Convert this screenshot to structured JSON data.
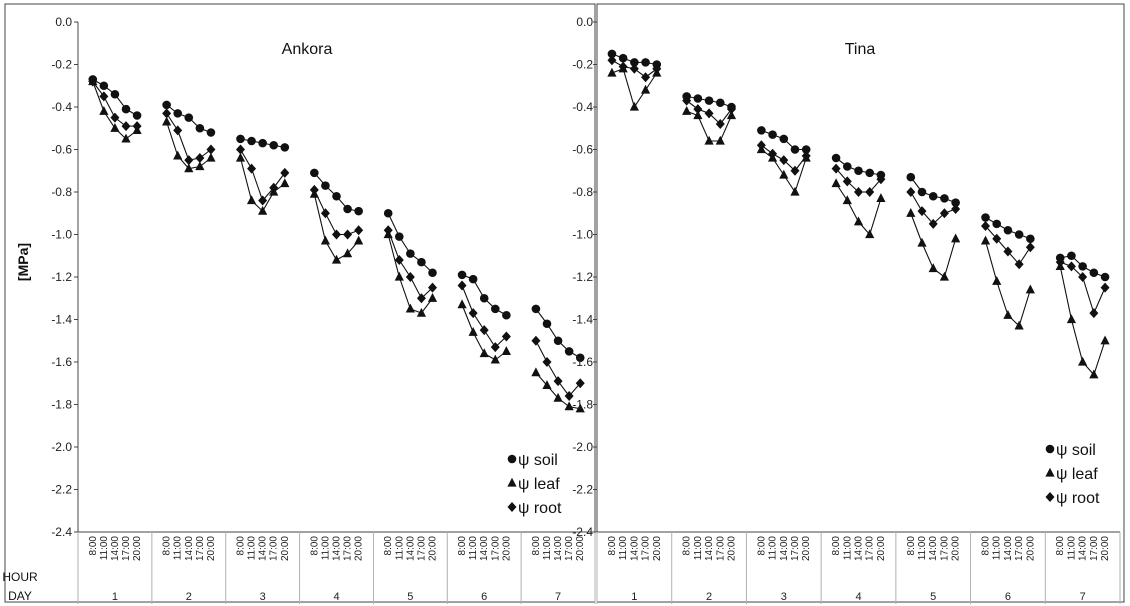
{
  "y_axis_label": "[MPa]",
  "row_labels": {
    "hour": "HOUR",
    "day": "DAY"
  },
  "hours": [
    "8:00",
    "11:00",
    "14:00",
    "17:00",
    "20:00"
  ],
  "days": [
    "1",
    "2",
    "3",
    "4",
    "5",
    "6",
    "7"
  ],
  "y_ticks": [
    "0.0",
    "-0.2",
    "-0.4",
    "-0.6",
    "-0.8",
    "-1.0",
    "-1.2",
    "-1.4",
    "-1.6",
    "-1.8",
    "-2.0",
    "-2.2",
    "-2.4"
  ],
  "legend": [
    "ψ soil",
    "ψ leaf",
    "ψ root"
  ],
  "colors": {
    "series": "#111111",
    "axis": "#444444",
    "grid": "#b0b0b0"
  },
  "chart_data": [
    {
      "type": "line",
      "title": "Ankora",
      "ylabel": "[MPa]",
      "ylim": [
        -2.4,
        0
      ],
      "days": [
        "1",
        "2",
        "3",
        "4",
        "5",
        "6",
        "7"
      ],
      "hours": [
        "8:00",
        "11:00",
        "14:00",
        "17:00",
        "20:00"
      ],
      "legend_position": "bottom-right",
      "series": [
        {
          "name": "ψ soil",
          "marker": "circle",
          "values": [
            [
              -0.27,
              -0.3,
              -0.34,
              -0.41,
              -0.44
            ],
            [
              -0.39,
              -0.43,
              -0.45,
              -0.5,
              -0.52
            ],
            [
              -0.55,
              -0.56,
              -0.57,
              -0.58,
              -0.59
            ],
            [
              -0.71,
              -0.77,
              -0.82,
              -0.88,
              -0.89
            ],
            [
              -0.9,
              -1.01,
              -1.09,
              -1.13,
              -1.18
            ],
            [
              -1.19,
              -1.21,
              -1.3,
              -1.35,
              -1.38
            ],
            [
              -1.35,
              -1.42,
              -1.5,
              -1.55,
              -1.58
            ]
          ]
        },
        {
          "name": "ψ leaf",
          "marker": "triangle",
          "values": [
            [
              -0.28,
              -0.42,
              -0.5,
              -0.55,
              -0.51
            ],
            [
              -0.47,
              -0.63,
              -0.69,
              -0.68,
              -0.64
            ],
            [
              -0.64,
              -0.84,
              -0.89,
              -0.8,
              -0.76
            ],
            [
              -0.81,
              -1.03,
              -1.12,
              -1.09,
              -1.03
            ],
            [
              -1.0,
              -1.2,
              -1.35,
              -1.37,
              -1.3
            ],
            [
              -1.33,
              -1.46,
              -1.56,
              -1.59,
              -1.55
            ],
            [
              -1.65,
              -1.71,
              -1.77,
              -1.81,
              -1.82
            ]
          ]
        },
        {
          "name": "ψ root",
          "marker": "diamond",
          "values": [
            [
              -0.28,
              -0.35,
              -0.45,
              -0.49,
              -0.49
            ],
            [
              -0.43,
              -0.51,
              -0.65,
              -0.64,
              -0.6
            ],
            [
              -0.6,
              -0.69,
              -0.84,
              -0.78,
              -0.71
            ],
            [
              -0.79,
              -0.9,
              -1.0,
              -1.0,
              -0.98
            ],
            [
              -0.98,
              -1.12,
              -1.2,
              -1.3,
              -1.25
            ],
            [
              -1.24,
              -1.37,
              -1.45,
              -1.53,
              -1.48
            ],
            [
              -1.5,
              -1.6,
              -1.69,
              -1.76,
              -1.7
            ]
          ]
        }
      ]
    },
    {
      "type": "line",
      "title": "Tina",
      "ylabel": "",
      "ylim": [
        -2.4,
        0
      ],
      "days": [
        "1",
        "2",
        "3",
        "4",
        "5",
        "6",
        "7"
      ],
      "hours": [
        "8:00",
        "11:00",
        "14:00",
        "17:00",
        "20:00"
      ],
      "legend_position": "bottom-right",
      "series": [
        {
          "name": "ψ soil",
          "marker": "circle",
          "values": [
            [
              -0.15,
              -0.17,
              -0.19,
              -0.19,
              -0.2
            ],
            [
              -0.35,
              -0.36,
              -0.37,
              -0.38,
              -0.4
            ],
            [
              -0.51,
              -0.53,
              -0.55,
              -0.6,
              -0.6
            ],
            [
              -0.64,
              -0.68,
              -0.7,
              -0.71,
              -0.72
            ],
            [
              -0.73,
              -0.8,
              -0.82,
              -0.83,
              -0.85
            ],
            [
              -0.92,
              -0.95,
              -0.98,
              -1.0,
              -1.02
            ],
            [
              -1.11,
              -1.1,
              -1.15,
              -1.18,
              -1.2
            ]
          ]
        },
        {
          "name": "ψ leaf",
          "marker": "triangle",
          "values": [
            [
              -0.24,
              -0.22,
              -0.4,
              -0.32,
              -0.24
            ],
            [
              -0.42,
              -0.44,
              -0.56,
              -0.56,
              -0.44
            ],
            [
              -0.6,
              -0.64,
              -0.72,
              -0.8,
              -0.64
            ],
            [
              -0.76,
              -0.84,
              -0.94,
              -1.0,
              -0.83
            ],
            [
              -0.9,
              -1.04,
              -1.16,
              -1.2,
              -1.02
            ],
            [
              -1.03,
              -1.22,
              -1.38,
              -1.43,
              -1.26
            ],
            [
              -1.15,
              -1.4,
              -1.6,
              -1.66,
              -1.5
            ]
          ]
        },
        {
          "name": "ψ root",
          "marker": "diamond",
          "values": [
            [
              -0.18,
              -0.21,
              -0.22,
              -0.26,
              -0.22
            ],
            [
              -0.37,
              -0.41,
              -0.43,
              -0.48,
              -0.41
            ],
            [
              -0.58,
              -0.62,
              -0.65,
              -0.7,
              -0.63
            ],
            [
              -0.69,
              -0.75,
              -0.8,
              -0.8,
              -0.74
            ],
            [
              -0.8,
              -0.89,
              -0.95,
              -0.9,
              -0.88
            ],
            [
              -0.96,
              -1.02,
              -1.08,
              -1.14,
              -1.06
            ],
            [
              -1.13,
              -1.15,
              -1.2,
              -1.37,
              -1.25
            ]
          ]
        }
      ]
    }
  ]
}
